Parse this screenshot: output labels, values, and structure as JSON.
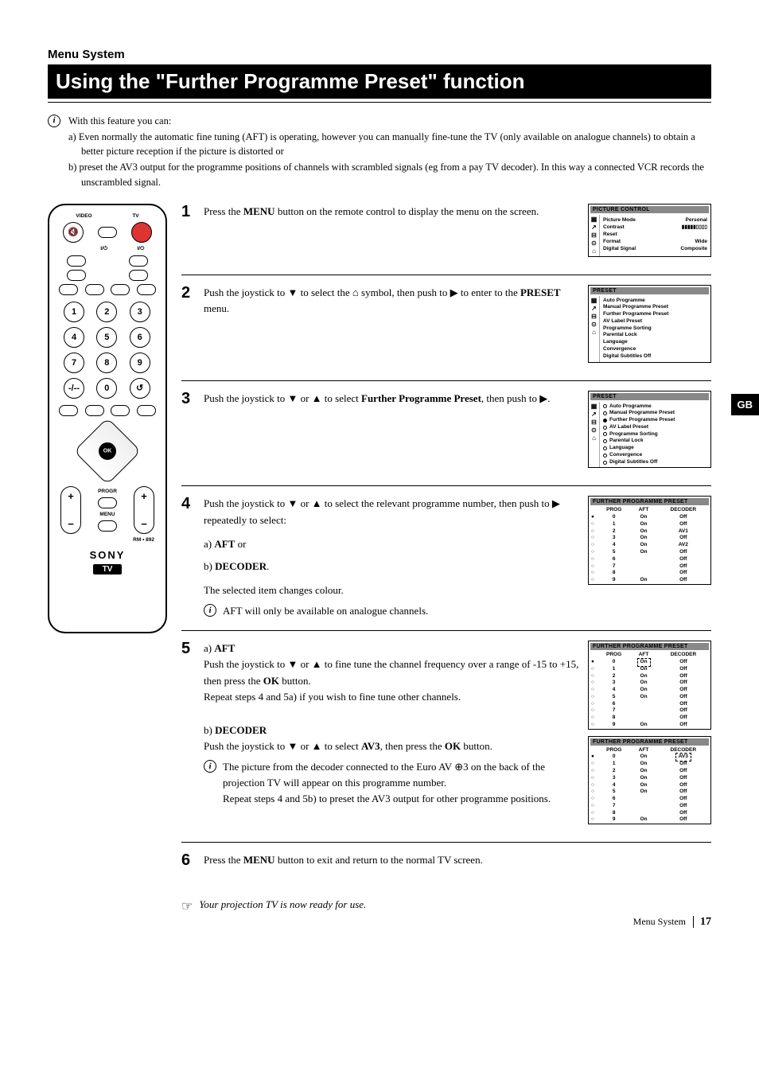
{
  "page": {
    "section_label": "Menu System",
    "title": "Using the \"Further Programme Preset\" function",
    "gb_tab": "GB",
    "footer_text": "Menu System",
    "page_number": "17"
  },
  "intro": {
    "lead": "With this feature you can:",
    "a": "a) Even normally the automatic fine tuning (AFT) is operating, however you can manually fine-tune the TV (only available on analogue channels) to obtain a better picture reception if the picture is distorted or",
    "b": "b) preset the AV3 output for the programme positions of channels with scrambled signals (eg from a pay TV decoder).  In  this way a connected VCR records the unscrambled signal."
  },
  "remote": {
    "top_labels": {
      "video": "VIDEO",
      "tv": "TV"
    },
    "power_row": "I/⁠⏻",
    "keypad": [
      "1",
      "2",
      "3",
      "4",
      "5",
      "6",
      "7",
      "8",
      "9",
      "",
      "0",
      ""
    ],
    "ok": "OK",
    "progr": "PROGR",
    "menu": "MENU",
    "model": "RM • 892",
    "brand": "SONY",
    "tv_badge": "TV"
  },
  "steps": {
    "s1": {
      "num": "1",
      "body_pre": "Press the ",
      "menu": "MENU",
      "body_post": " button on the remote control to display the menu on the screen."
    },
    "s2": {
      "num": "2",
      "pre": "Push the joystick to ",
      "mid": " to select the ",
      "post1": " symbol, then push to ",
      "post2": " to enter to the ",
      "preset": "PRESET",
      "end": " menu."
    },
    "s3": {
      "num": "3",
      "pre": "Push the joystick to ",
      "or": " or ",
      "mid": " to select ",
      "target": "Further Programme Preset",
      "post": ", then push to ",
      "end": "."
    },
    "s4": {
      "num": "4",
      "line1_pre": "Push the joystick to ",
      "or": " or ",
      "line1_mid": " to select the relevant programme number, then push to ",
      "line1_post": " repeatedly to select:",
      "a": "a) ",
      "aft": "AFT",
      "a_post": " or",
      "b": "b) ",
      "decoder": "DECODER",
      "b_post": ".",
      "colour": "The selected item changes colour.",
      "note": "AFT will only be available on analogue channels."
    },
    "s5": {
      "num": "5",
      "a_label": "a) ",
      "aft": "AFT",
      "a_line_pre": "Push the joystick to ",
      "or": " or ",
      "a_line_mid": " to fine tune the channel frequency over a range of -15 to +15, then press the ",
      "ok": "OK",
      "a_line_post": " button.",
      "a_repeat": "Repeat steps 4 and 5a) if you wish to fine tune other channels.",
      "b_label": "b) ",
      "decoder": "DECODER",
      "b_line_pre": "Push the joystick to ",
      "b_line_mid": " to select ",
      "av3": "AV3",
      "b_line_post": ", then press the ",
      "b_line_end": " button.",
      "note": "The picture from the decoder connected to the Euro AV ⊕3 on the back of the projection TV will appear on this programme number.",
      "b_repeat": "Repeat steps 4 and 5b) to preset the AV3 output for other programme positions."
    },
    "s6": {
      "num": "6",
      "pre": "Press the ",
      "menu": "MENU",
      "post": " button to exit and return to the normal TV screen."
    },
    "ready": "Your projection TV is now ready for use."
  },
  "osd": {
    "icons": [
      "▦",
      "↗",
      "⊟",
      "⊙",
      "⌂"
    ],
    "picture": {
      "title": "PICTURE  CONTROL",
      "rows": [
        {
          "lbl": "Picture Mode",
          "val": "Personal"
        },
        {
          "lbl": "Contrast",
          "val": "▮▮▮▮▮▯▯▯▯"
        },
        {
          "lbl": "Reset",
          "val": ""
        },
        {
          "lbl": "Format",
          "val": "Wide"
        },
        {
          "lbl": "Digital Signal",
          "val": "Composite"
        }
      ]
    },
    "preset": {
      "title": "PRESET",
      "items": [
        "Auto Programme",
        "Manual Programme Preset",
        "Further Programme Preset",
        "AV Label Preset",
        "Programme Sorting",
        "Parental Lock",
        "Language",
        "Convergence",
        "Digital Subtitles  Off"
      ]
    },
    "preset_sel_index": 2,
    "fpp": {
      "title": "FURTHER  PROGRAMME  PRESET",
      "head": [
        "",
        "PROG",
        "AFT",
        "DECODER"
      ],
      "rows4": [
        [
          "●",
          "0",
          "On",
          "Off"
        ],
        [
          "○",
          "1",
          "On",
          "Off"
        ],
        [
          "○",
          "2",
          "On",
          "AV1"
        ],
        [
          "○",
          "3",
          "On",
          "Off"
        ],
        [
          "○",
          "4",
          "On",
          "AV2"
        ],
        [
          "○",
          "5",
          "On",
          "Off"
        ],
        [
          "○",
          "6",
          "",
          "Off"
        ],
        [
          "○",
          "7",
          "",
          "Off"
        ],
        [
          "○",
          "8",
          "",
          "Off"
        ],
        [
          "○",
          "9",
          "On",
          "Off"
        ]
      ],
      "rows5a": [
        [
          "●",
          "0",
          "On",
          "Off"
        ],
        [
          "○",
          "1",
          "On",
          "Off"
        ],
        [
          "○",
          "2",
          "On",
          "Off"
        ],
        [
          "○",
          "3",
          "On",
          "Off"
        ],
        [
          "○",
          "4",
          "On",
          "Off"
        ],
        [
          "○",
          "5",
          "On",
          "Off"
        ],
        [
          "○",
          "6",
          "",
          "Off"
        ],
        [
          "○",
          "7",
          "",
          "Off"
        ],
        [
          "○",
          "8",
          "",
          "Off"
        ],
        [
          "○",
          "9",
          "On",
          "Off"
        ]
      ],
      "rows5b": [
        [
          "●",
          "0",
          "On",
          "AV3"
        ],
        [
          "○",
          "1",
          "On",
          "Off"
        ],
        [
          "○",
          "2",
          "On",
          "Off"
        ],
        [
          "○",
          "3",
          "On",
          "Off"
        ],
        [
          "○",
          "4",
          "On",
          "Off"
        ],
        [
          "○",
          "5",
          "On",
          "Off"
        ],
        [
          "○",
          "6",
          "",
          "Off"
        ],
        [
          "○",
          "7",
          "",
          "Off"
        ],
        [
          "○",
          "8",
          "",
          "Off"
        ],
        [
          "○",
          "9",
          "On",
          "Off"
        ]
      ]
    }
  },
  "arrows": {
    "down": "▼",
    "up": "▲",
    "right": "▶",
    "preset_sym": "⌂"
  }
}
